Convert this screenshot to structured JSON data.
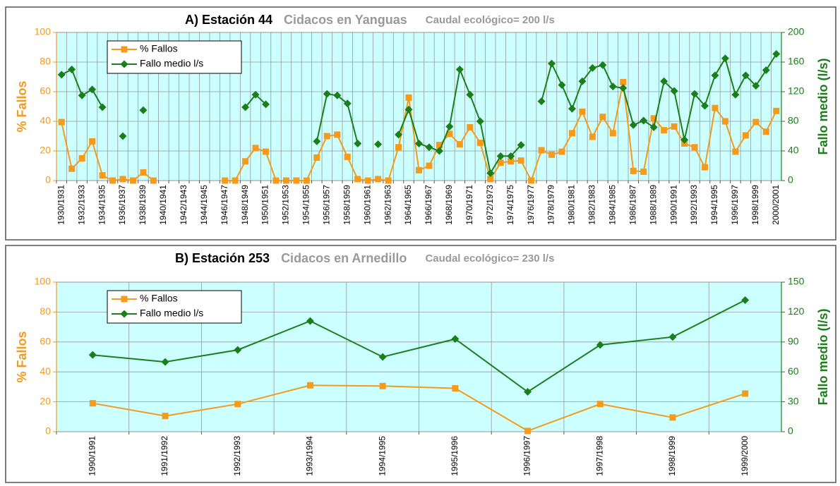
{
  "chart_data": [
    {
      "type": "line",
      "title": "A) Estación 44",
      "subtitle": "Cidacos en Yanguas",
      "annotation": "Caudal ecológico= 200 l/s",
      "ylabel": "% Fallos",
      "y2label": "Fallo medio (l/s)",
      "categories": [
        "1930/1931",
        null,
        "1932/1933",
        null,
        "1934/1935",
        null,
        "1936/1937",
        null,
        "1938/1939",
        null,
        "1940/1941",
        null,
        "1942/1943",
        null,
        "1944/1945",
        null,
        "1946/1947",
        null,
        "1948/1949",
        null,
        "1950/1951",
        null,
        "1952/1953",
        null,
        "1954/1955",
        null,
        "1956/1957",
        null,
        "1958/1959",
        null,
        "1960/1961",
        null,
        "1962/1963",
        null,
        "1964/1965",
        null,
        "1966/1967",
        null,
        "1968/1969",
        null,
        "1970/1971",
        null,
        "1972/1973",
        null,
        "1974/1975",
        null,
        "1976/1977",
        null,
        "1978/1979",
        null,
        "1980/1981",
        null,
        "1982/1983",
        null,
        "1984/1985",
        null,
        "1986/1987",
        null,
        "1988/1989",
        null,
        "1990/1991",
        null,
        "1992/1993",
        null,
        "1994/1995",
        null,
        "1996/1997",
        null,
        "1998/1999",
        null,
        "2000/2001"
      ],
      "series": [
        {
          "name": "% Fallos",
          "color": "#f59a1b",
          "values": [
            39.5,
            8,
            15,
            26.5,
            3.5,
            0,
            1,
            0,
            5.5,
            0,
            null,
            null,
            null,
            null,
            null,
            null,
            0,
            0,
            13,
            22,
            19.5,
            0,
            0,
            0,
            0,
            15.5,
            30,
            31,
            16,
            1,
            0,
            1,
            0,
            22.5,
            56,
            7,
            10,
            24,
            31.5,
            24.5,
            36,
            25.5,
            1,
            12,
            13,
            13.5,
            0,
            20.5,
            17.5,
            19.5,
            32,
            46.5,
            29.5,
            43,
            32,
            66.5,
            6.5,
            6,
            42,
            34,
            36.5,
            25,
            22.5,
            9,
            49,
            40,
            19.5,
            30.5,
            39.5,
            33,
            47
          ]
        },
        {
          "name": "Fallo medio l/s",
          "color": "#1a7f1a",
          "axis": "y2",
          "values": [
            143,
            150,
            115,
            123,
            99,
            null,
            60,
            null,
            95,
            null,
            null,
            null,
            null,
            null,
            null,
            null,
            null,
            null,
            99,
            116,
            103,
            null,
            null,
            null,
            null,
            53,
            117,
            115,
            104,
            50,
            null,
            49,
            null,
            62,
            96,
            50,
            45,
            40,
            73,
            150,
            116,
            80,
            10,
            33,
            33,
            48,
            null,
            107,
            158,
            129,
            97,
            134,
            152,
            156,
            127,
            125,
            75,
            81,
            72,
            134,
            121,
            55,
            117,
            101,
            142,
            165,
            116,
            142,
            128,
            149,
            171
          ]
        }
      ],
      "ylim": [
        0,
        100
      ],
      "yticks": [
        0,
        20,
        40,
        60,
        80,
        100
      ],
      "y2lim": [
        0,
        200
      ],
      "y2ticks": [
        0,
        40,
        80,
        120,
        160,
        200
      ],
      "grid": true,
      "legend": "upper left",
      "background": "#ccffff"
    },
    {
      "type": "line",
      "title": "B) Estación 253",
      "subtitle": "Cidacos en Arnedillo",
      "annotation": "Caudal ecológico= 230 l/s",
      "ylabel": "% Fallos",
      "y2label": "Fallo medio (l/s)",
      "categories": [
        "1990/1991",
        "1991/1992",
        "1992/1993",
        "1993/1994",
        "1994/1995",
        "1995/1996",
        "1996/1997",
        "1997/1998",
        "1998/1999",
        "1999/2000"
      ],
      "series": [
        {
          "name": "% Fallos",
          "color": "#f59a1b",
          "values": [
            19,
            10.5,
            18.5,
            31,
            30.5,
            29,
            0.5,
            18.5,
            9.5,
            25.5
          ]
        },
        {
          "name": "Fallo medio l/s",
          "color": "#1a7f1a",
          "axis": "y2",
          "values": [
            77,
            70,
            82,
            111,
            75,
            93,
            40,
            87,
            95,
            132
          ]
        }
      ],
      "ylim": [
        0,
        100
      ],
      "yticks": [
        0,
        20,
        40,
        60,
        80,
        100
      ],
      "y2lim": [
        0,
        150
      ],
      "y2ticks": [
        0,
        30,
        60,
        90,
        120,
        150
      ],
      "grid": true,
      "legend": "upper left",
      "background": "#ccffff"
    }
  ]
}
